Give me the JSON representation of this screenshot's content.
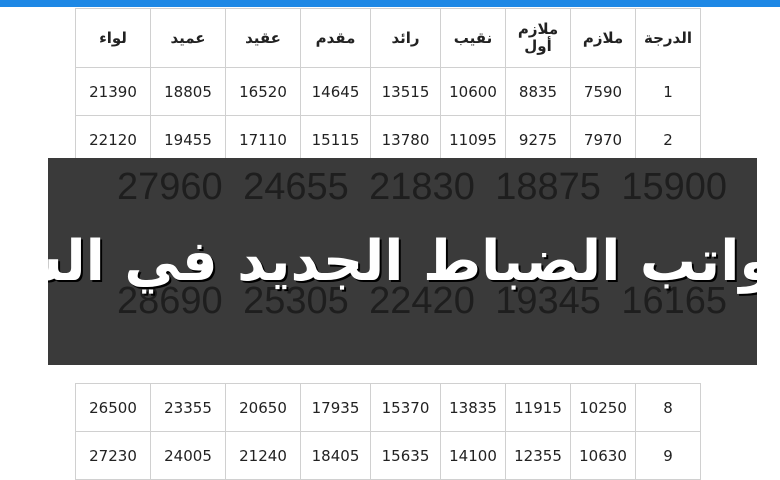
{
  "table": {
    "headers": [
      "الدرجة",
      "ملازم",
      "ملازم أول",
      "نقيب",
      "رائد",
      "مقدم",
      "عقيد",
      "عميد",
      "لواء"
    ],
    "rows_top": [
      [
        "1",
        7590,
        8835,
        10600,
        13515,
        14645,
        16520,
        18805,
        21390
      ],
      [
        "2",
        7970,
        9275,
        11095,
        13780,
        15115,
        17110,
        19455,
        22120
      ]
    ],
    "rows_bottom": [
      [
        "8",
        10250,
        11915,
        13835,
        15370,
        17935,
        20650,
        23355,
        26500
      ],
      [
        "9",
        10630,
        12355,
        14100,
        15635,
        18405,
        21240,
        24005,
        27230
      ]
    ]
  },
  "banner": {
    "title": "سلم رواتب الضباط الجديد في السعودية",
    "background_rows": [
      [
        15900,
        18875,
        21830,
        24655,
        27960
      ],
      [
        16165,
        19345,
        22420,
        25305,
        28690
      ]
    ]
  }
}
